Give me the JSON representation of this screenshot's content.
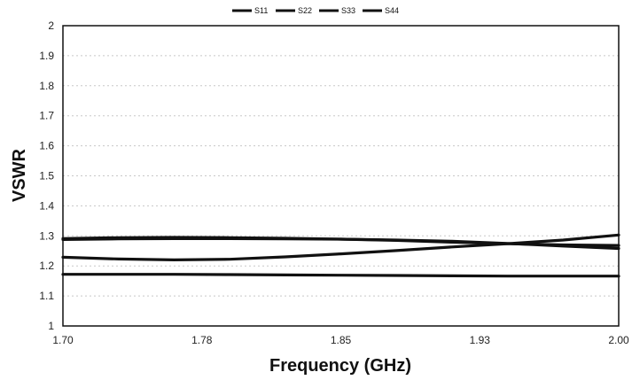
{
  "chart_data": {
    "type": "line",
    "title": "",
    "xlabel": "Frequency (GHz)",
    "ylabel": "VSWR",
    "xlim": [
      1.7,
      2.0
    ],
    "ylim": [
      1,
      2
    ],
    "xticks": [
      "1.70",
      "1.78",
      "1.85",
      "1.93",
      "2.00"
    ],
    "yticks": [
      "1",
      "1.1",
      "1.2",
      "1.3",
      "1.4",
      "1.5",
      "1.6",
      "1.7",
      "1.8",
      "1.9",
      "2"
    ],
    "grid": "horizontal dashed",
    "legend": "top-center",
    "x": [
      1.7,
      1.73,
      1.76,
      1.79,
      1.82,
      1.85,
      1.88,
      1.91,
      1.94,
      1.97,
      2.0
    ],
    "series": [
      {
        "name": "S11",
        "values": [
          1.172,
          1.172,
          1.172,
          1.171,
          1.17,
          1.169,
          1.168,
          1.167,
          1.166,
          1.166,
          1.166
        ]
      },
      {
        "name": "S22",
        "values": [
          1.288,
          1.29,
          1.291,
          1.291,
          1.29,
          1.289,
          1.286,
          1.282,
          1.275,
          1.266,
          1.258
        ]
      },
      {
        "name": "S33",
        "values": [
          1.229,
          1.223,
          1.22,
          1.222,
          1.23,
          1.24,
          1.251,
          1.263,
          1.274,
          1.286,
          1.303
        ]
      },
      {
        "name": "S44",
        "values": [
          1.291,
          1.294,
          1.295,
          1.294,
          1.292,
          1.289,
          1.285,
          1.279,
          1.274,
          1.27,
          1.268
        ]
      }
    ]
  }
}
